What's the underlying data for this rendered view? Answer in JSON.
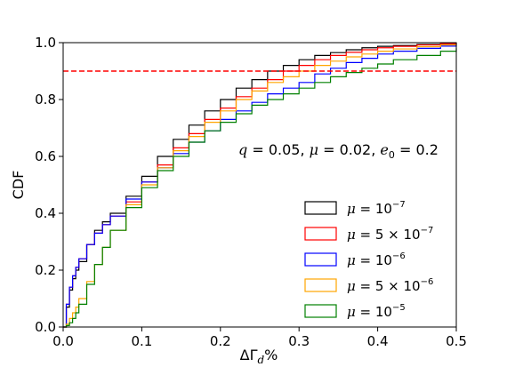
{
  "chart_data": {
    "type": "line",
    "xlabel": "ΔΓ_d%",
    "ylabel": "CDF",
    "xlim": [
      0.0,
      0.5
    ],
    "ylim": [
      0.0,
      1.0
    ],
    "x_ticks": [
      0.0,
      0.1,
      0.2,
      0.3,
      0.4,
      0.5
    ],
    "x_tick_labels": [
      "0.0",
      "0.1",
      "0.2",
      "0.3",
      "0.4",
      "0.5"
    ],
    "y_ticks": [
      0.0,
      0.2,
      0.4,
      0.6,
      0.8,
      1.0
    ],
    "y_tick_labels": [
      "0.0",
      "0.2",
      "0.4",
      "0.6",
      "0.8",
      "1.0"
    ],
    "grid": false,
    "legend_position": "lower-right",
    "annotation": {
      "text": "q = 0.05, μ = 0.02, e0 = 0.2",
      "parts": {
        "q": "0.05",
        "mu": "0.02",
        "e0": "0.2"
      }
    },
    "reference_line": {
      "y": 0.9,
      "color": "#ff0000",
      "style": "dashed"
    },
    "series": [
      {
        "name": "μ = 10^-7",
        "legend_base": "10",
        "legend_coef": "",
        "legend_exp": "−7",
        "color": "#000000",
        "x": [
          0.0,
          0.004,
          0.008,
          0.012,
          0.016,
          0.02,
          0.03,
          0.04,
          0.05,
          0.06,
          0.08,
          0.1,
          0.12,
          0.14,
          0.16,
          0.18,
          0.2,
          0.22,
          0.24,
          0.26,
          0.28,
          0.3,
          0.32,
          0.34,
          0.36,
          0.38,
          0.4,
          0.42,
          0.45,
          0.48,
          0.5
        ],
        "y": [
          0.0,
          0.07,
          0.13,
          0.17,
          0.2,
          0.23,
          0.29,
          0.34,
          0.37,
          0.4,
          0.46,
          0.53,
          0.6,
          0.66,
          0.71,
          0.76,
          0.8,
          0.84,
          0.87,
          0.9,
          0.92,
          0.94,
          0.955,
          0.965,
          0.975,
          0.982,
          0.987,
          0.99,
          0.994,
          0.997,
          1.0
        ]
      },
      {
        "name": "μ = 5×10^-7",
        "legend_base": "10",
        "legend_coef": "5 × ",
        "legend_exp": "−7",
        "color": "#ff0000",
        "x": [
          0.0,
          0.004,
          0.008,
          0.012,
          0.016,
          0.02,
          0.03,
          0.04,
          0.05,
          0.06,
          0.08,
          0.1,
          0.12,
          0.14,
          0.16,
          0.18,
          0.2,
          0.22,
          0.24,
          0.26,
          0.28,
          0.3,
          0.32,
          0.34,
          0.36,
          0.38,
          0.4,
          0.42,
          0.45,
          0.48,
          0.5
        ],
        "y": [
          0.0,
          0.08,
          0.14,
          0.18,
          0.21,
          0.24,
          0.29,
          0.33,
          0.36,
          0.39,
          0.44,
          0.51,
          0.57,
          0.63,
          0.68,
          0.73,
          0.77,
          0.81,
          0.84,
          0.87,
          0.9,
          0.92,
          0.94,
          0.955,
          0.966,
          0.975,
          0.982,
          0.987,
          0.992,
          0.996,
          0.998
        ]
      },
      {
        "name": "μ = 10^-6",
        "legend_base": "10",
        "legend_coef": "",
        "legend_exp": "−6",
        "color": "#0000ff",
        "x": [
          0.0,
          0.004,
          0.008,
          0.012,
          0.016,
          0.02,
          0.03,
          0.04,
          0.05,
          0.06,
          0.08,
          0.1,
          0.12,
          0.14,
          0.16,
          0.18,
          0.2,
          0.22,
          0.24,
          0.26,
          0.28,
          0.3,
          0.32,
          0.34,
          0.36,
          0.38,
          0.4,
          0.42,
          0.45,
          0.48,
          0.5
        ],
        "y": [
          0.0,
          0.08,
          0.14,
          0.18,
          0.21,
          0.24,
          0.29,
          0.33,
          0.36,
          0.39,
          0.45,
          0.51,
          0.56,
          0.61,
          0.65,
          0.69,
          0.73,
          0.76,
          0.79,
          0.82,
          0.84,
          0.86,
          0.89,
          0.91,
          0.93,
          0.945,
          0.96,
          0.97,
          0.98,
          0.988,
          0.993
        ]
      },
      {
        "name": "μ = 5×10^-6",
        "legend_base": "10",
        "legend_coef": "5 × ",
        "legend_exp": "−6",
        "color": "#ffa500",
        "x": [
          0.0,
          0.004,
          0.008,
          0.012,
          0.016,
          0.02,
          0.03,
          0.04,
          0.05,
          0.06,
          0.08,
          0.1,
          0.12,
          0.14,
          0.16,
          0.18,
          0.2,
          0.22,
          0.24,
          0.26,
          0.28,
          0.3,
          0.32,
          0.34,
          0.36,
          0.38,
          0.4,
          0.42,
          0.45,
          0.48,
          0.5
        ],
        "y": [
          0.0,
          0.01,
          0.03,
          0.05,
          0.07,
          0.1,
          0.16,
          0.22,
          0.28,
          0.34,
          0.43,
          0.5,
          0.56,
          0.62,
          0.67,
          0.72,
          0.76,
          0.8,
          0.83,
          0.86,
          0.88,
          0.9,
          0.92,
          0.935,
          0.95,
          0.96,
          0.97,
          0.978,
          0.986,
          0.992,
          0.996
        ]
      },
      {
        "name": "μ = 10^-5",
        "legend_base": "10",
        "legend_coef": "",
        "legend_exp": "−5",
        "color": "#008000",
        "x": [
          0.0,
          0.004,
          0.008,
          0.012,
          0.016,
          0.02,
          0.03,
          0.04,
          0.05,
          0.06,
          0.08,
          0.1,
          0.12,
          0.14,
          0.16,
          0.18,
          0.2,
          0.22,
          0.24,
          0.26,
          0.28,
          0.3,
          0.32,
          0.34,
          0.36,
          0.38,
          0.4,
          0.42,
          0.45,
          0.48,
          0.5
        ],
        "y": [
          0.0,
          0.005,
          0.015,
          0.03,
          0.05,
          0.08,
          0.15,
          0.22,
          0.28,
          0.34,
          0.42,
          0.49,
          0.55,
          0.6,
          0.65,
          0.69,
          0.72,
          0.75,
          0.78,
          0.8,
          0.82,
          0.84,
          0.86,
          0.88,
          0.895,
          0.91,
          0.925,
          0.94,
          0.955,
          0.97,
          0.98
        ]
      }
    ]
  }
}
